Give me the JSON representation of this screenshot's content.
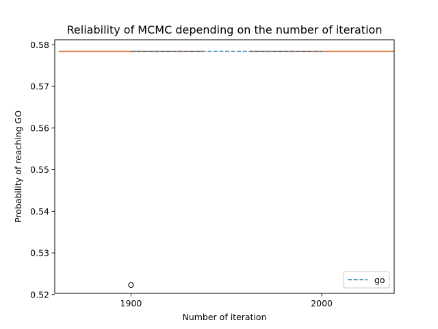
{
  "chart_data": {
    "type": "box",
    "title": "Reliability of MCMC depending on the number of iteration",
    "xlabel": "Number of iteration",
    "ylabel": "Probability of reaching GO",
    "xlim": [
      1860,
      2038
    ],
    "ylim": [
      0.5203,
      0.5812
    ],
    "x_ticks": [
      1900,
      2000
    ],
    "x_tick_labels": [
      "1900",
      "2000"
    ],
    "y_ticks": [
      0.52,
      0.53,
      0.54,
      0.55,
      0.56,
      0.57,
      0.58
    ],
    "y_tick_labels": [
      "0.52",
      "0.53",
      "0.54",
      "0.55",
      "0.56",
      "0.57",
      "0.58"
    ],
    "grid": false,
    "boxes": [
      {
        "x": 1900,
        "value": 0.5784,
        "box_width": 75,
        "outliers": [
          0.5223
        ]
      },
      {
        "x": 2000,
        "value": 0.5784,
        "box_width": 75,
        "outliers": []
      }
    ],
    "series": [
      {
        "name": "go",
        "style": "dashed",
        "color": "#1f77b4",
        "x": [
          1900,
          2000
        ],
        "y": [
          0.5784,
          0.5784
        ]
      }
    ],
    "median_color": "#dd8452",
    "legend": {
      "placement": "lower-right",
      "entries": [
        "go"
      ]
    }
  }
}
